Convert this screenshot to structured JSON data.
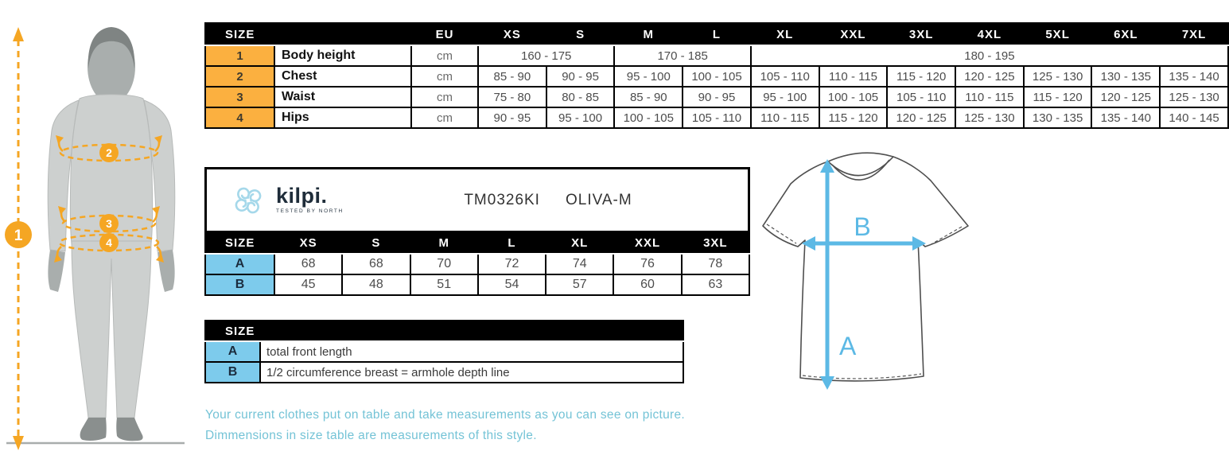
{
  "colors": {
    "table_header_bg": "#000000",
    "row_number_bg": "#FBB040",
    "key_cell_bg": "#7DCBEC",
    "badge_orange": "#F5A623",
    "arrow_blue": "#5CB9E5",
    "note_text": "#74C3D6"
  },
  "figure": {
    "marker_1": "1",
    "marker_2": "2",
    "marker_3": "3",
    "marker_4": "4"
  },
  "body_size_table": {
    "header": [
      "SIZE",
      "EU",
      "XS",
      "S",
      "M",
      "L",
      "XL",
      "XXL",
      "3XL",
      "4XL",
      "5XL",
      "6XL",
      "7XL"
    ],
    "rows": [
      {
        "num": "1",
        "label": "Body height",
        "unit": "cm",
        "values": [
          {
            "v": "160 - 175",
            "span": 2
          },
          {
            "v": "170 - 185",
            "span": 2
          },
          {
            "v": "180 - 195",
            "span": 7
          }
        ]
      },
      {
        "num": "2",
        "label": "Chest",
        "unit": "cm",
        "values": [
          {
            "v": "85 - 90",
            "span": 1
          },
          {
            "v": "90 - 95",
            "span": 1
          },
          {
            "v": "95 - 100",
            "span": 1
          },
          {
            "v": "100 - 105",
            "span": 1
          },
          {
            "v": "105 - 110",
            "span": 1
          },
          {
            "v": "110 - 115",
            "span": 1
          },
          {
            "v": "115 - 120",
            "span": 1
          },
          {
            "v": "120 - 125",
            "span": 1
          },
          {
            "v": "125 - 130",
            "span": 1
          },
          {
            "v": "130 - 135",
            "span": 1
          },
          {
            "v": "135 - 140",
            "span": 1
          }
        ]
      },
      {
        "num": "3",
        "label": "Waist",
        "unit": "cm",
        "values": [
          {
            "v": "75 - 80",
            "span": 1
          },
          {
            "v": "80 - 85",
            "span": 1
          },
          {
            "v": "85 - 90",
            "span": 1
          },
          {
            "v": "90 - 95",
            "span": 1
          },
          {
            "v": "95 - 100",
            "span": 1
          },
          {
            "v": "100 - 105",
            "span": 1
          },
          {
            "v": "105 - 110",
            "span": 1
          },
          {
            "v": "110 - 115",
            "span": 1
          },
          {
            "v": "115 - 120",
            "span": 1
          },
          {
            "v": "120 - 125",
            "span": 1
          },
          {
            "v": "125 - 130",
            "span": 1
          }
        ]
      },
      {
        "num": "4",
        "label": "Hips",
        "unit": "cm",
        "values": [
          {
            "v": "90 - 95",
            "span": 1
          },
          {
            "v": "95 - 100",
            "span": 1
          },
          {
            "v": "100 - 105",
            "span": 1
          },
          {
            "v": "105 - 110",
            "span": 1
          },
          {
            "v": "110 - 115",
            "span": 1
          },
          {
            "v": "115 - 120",
            "span": 1
          },
          {
            "v": "120 - 125",
            "span": 1
          },
          {
            "v": "125 - 130",
            "span": 1
          },
          {
            "v": "130 - 135",
            "span": 1
          },
          {
            "v": "135 - 140",
            "span": 1
          },
          {
            "v": "140 - 145",
            "span": 1
          }
        ]
      }
    ]
  },
  "product_table": {
    "brand_name": "kilpi.",
    "brand_tagline": "TESTED BY NORTH",
    "product_code": "TM0326KI",
    "product_style": "OLIVA-M",
    "header": [
      "SIZE",
      "XS",
      "S",
      "M",
      "L",
      "XL",
      "XXL",
      "3XL"
    ],
    "rows": [
      {
        "key": "A",
        "values": [
          "68",
          "68",
          "70",
          "72",
          "74",
          "76",
          "78"
        ]
      },
      {
        "key": "B",
        "values": [
          "45",
          "48",
          "51",
          "54",
          "57",
          "60",
          "63"
        ]
      }
    ]
  },
  "legend_table": {
    "header": "SIZE",
    "rows": [
      {
        "key": "A",
        "description": "total front length"
      },
      {
        "key": "B",
        "description": "1/2 circumference breast = armhole depth line"
      }
    ]
  },
  "shirt_diagram": {
    "label_a": "A",
    "label_b": "B"
  },
  "notes": [
    "Your current clothes put on table and take measurements as you can see on picture.",
    "Dimmensions in size table are measurements of this style."
  ]
}
